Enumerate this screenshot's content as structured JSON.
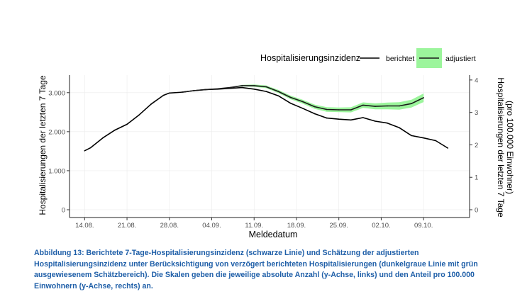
{
  "chart_data": {
    "type": "line",
    "x_ticks": [
      "14.08.",
      "21.08.",
      "28.08.",
      "04.09.",
      "11.09.",
      "18.09.",
      "25.09.",
      "02.10.",
      "09.10."
    ],
    "xlabel": "Meldedatum",
    "ylabel_left": "Hospitalisierungen der letzten 7 Tage",
    "ylabel_right": "Hospitalisierungen der letzten 7 Tage (pro 100.000 Einwohner)",
    "y_left_ticks": [
      "0",
      "1.000",
      "2.000",
      "3.000"
    ],
    "y_left_lim": [
      -200,
      3450
    ],
    "y_right_ticks": [
      "0",
      "1",
      "2",
      "3",
      "4"
    ],
    "y_right_lim": [
      -0.24,
      4.15
    ],
    "grid": true,
    "legend": {
      "title": "Hospitalisierungsinzidenz",
      "placement": "top-right",
      "items": [
        "berichtet",
        "adjustiert"
      ]
    },
    "x_days": {
      "start": "2021-08-14",
      "end": "2021-10-13"
    },
    "series": [
      {
        "name": "berichtet",
        "color": "#000000",
        "x": [
          "2021-08-14",
          "2021-08-15",
          "2021-08-17",
          "2021-08-19",
          "2021-08-21",
          "2021-08-23",
          "2021-08-25",
          "2021-08-27",
          "2021-08-28",
          "2021-08-30",
          "2021-09-01",
          "2021-09-03",
          "2021-09-05",
          "2021-09-07",
          "2021-09-09",
          "2021-09-11",
          "2021-09-13",
          "2021-09-15",
          "2021-09-17",
          "2021-09-19",
          "2021-09-21",
          "2021-09-23",
          "2021-09-25",
          "2021-09-27",
          "2021-09-29",
          "2021-10-01",
          "2021-10-03",
          "2021-10-05",
          "2021-10-07",
          "2021-10-09",
          "2021-10-11",
          "2021-10-13"
        ],
        "y": [
          1510,
          1590,
          1840,
          2040,
          2190,
          2430,
          2710,
          2930,
          2990,
          3010,
          3050,
          3080,
          3090,
          3110,
          3130,
          3090,
          3030,
          2920,
          2730,
          2600,
          2460,
          2350,
          2320,
          2300,
          2360,
          2270,
          2220,
          2100,
          1900,
          1840,
          1770,
          1580
        ]
      },
      {
        "name": "adjustiert",
        "color": "#1a1a1a",
        "band_color": "#9cf59c",
        "x": [
          "2021-08-30",
          "2021-09-01",
          "2021-09-03",
          "2021-09-05",
          "2021-09-07",
          "2021-09-09",
          "2021-09-11",
          "2021-09-13",
          "2021-09-15",
          "2021-09-17",
          "2021-09-19",
          "2021-09-21",
          "2021-09-23",
          "2021-09-25",
          "2021-09-27",
          "2021-09-29",
          "2021-10-01",
          "2021-10-03",
          "2021-10-05",
          "2021-10-07",
          "2021-10-09"
        ],
        "y": [
          3010,
          3050,
          3080,
          3100,
          3130,
          3180,
          3180,
          3150,
          3030,
          2880,
          2770,
          2640,
          2570,
          2560,
          2560,
          2680,
          2650,
          2660,
          2660,
          2720,
          2870
        ],
        "band": [
          0,
          0,
          0,
          0,
          0,
          20,
          30,
          35,
          40,
          45,
          50,
          55,
          60,
          60,
          65,
          70,
          75,
          85,
          95,
          100,
          110
        ]
      }
    ]
  },
  "caption": "Abbildung 13: Berichtete 7-Tage-Hospitalisierungsinzidenz (schwarze Linie) und Schätzung der adjustierten Hospitalisierungsinzidenz unter Berücksichtigung von verzögert berichteten Hospitalisierungen (dunkelgraue Linie mit grün ausgewiesenem Schätzbereich). Die Skalen geben die jeweilige absolute Anzahl (y-Achse, links) und den Anteil pro 100.000 Einwohnern (y-Achse, rechts) an.",
  "colors": {
    "caption": "#1f5fa8",
    "grid": "#ebebeb",
    "band": "#9cf59c"
  }
}
